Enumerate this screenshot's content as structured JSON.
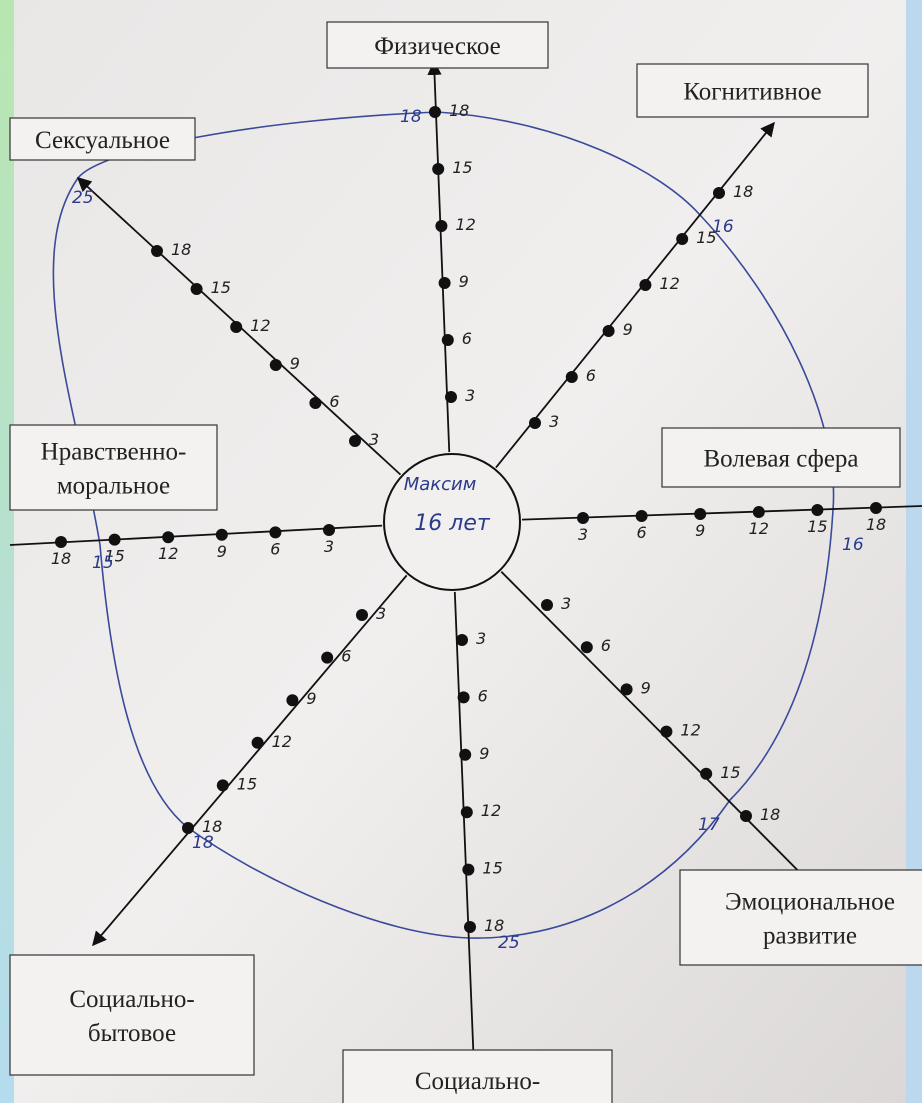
{
  "center": {
    "name": "Максим",
    "age": "16 лет"
  },
  "scale": [
    3,
    6,
    9,
    12,
    15,
    18
  ],
  "axes": [
    {
      "label": [
        "Физическое"
      ],
      "note": "18"
    },
    {
      "label": [
        "Когнитивное"
      ],
      "note": "16"
    },
    {
      "label": [
        "Волевая сфера"
      ],
      "note": "16"
    },
    {
      "label": [
        "Эмоциональное",
        "развитие"
      ],
      "note": "17"
    },
    {
      "label": [
        "Социально-"
      ],
      "note": "25"
    },
    {
      "label": [
        "Социально-",
        "бытовое"
      ],
      "note": "18"
    },
    {
      "label": [
        "Нравственно-",
        "моральное"
      ],
      "note": "15"
    },
    {
      "label": [
        "Сексуальное"
      ],
      "note": "25"
    }
  ]
}
